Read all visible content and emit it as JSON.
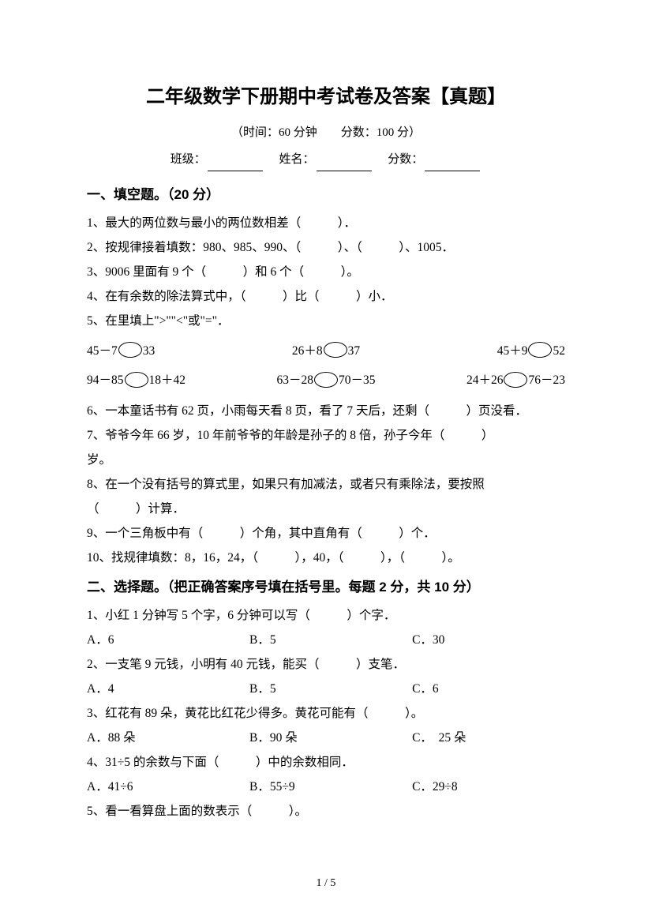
{
  "title": "二年级数学下册期中考试卷及答案【真题】",
  "subtitle": "（时间：60 分钟　　分数：100 分）",
  "info": {
    "class_label": "班级：",
    "name_label": "姓名：",
    "score_label": "分数："
  },
  "section1": {
    "header": "一、填空题。（20 分）",
    "q1": "1、最大的两位数与最小的两位数相差（　　　）．",
    "q2": "2、按规律接着填数：980、985、990、（　　　）、（　　　）、1005．",
    "q3": "3、9006 里面有 9 个（　　　）和 6 个（　　　）。",
    "q4": "4、在有余数的除法算式中，（　　　）比（　　　）小．",
    "q5": "5、在里填上\">\"\"<\"或\"=\"．",
    "cmp1": {
      "a_l": "45－7",
      "a_r": "33",
      "b_l": "26＋8",
      "b_r": "37",
      "c_l": "45＋9",
      "c_r": "52"
    },
    "cmp2": {
      "a_l": "94－85",
      "a_r": "18＋42",
      "b_l": "63－28",
      "b_r": "70－35",
      "c_l": "24＋26",
      "c_r": "76－23"
    },
    "q6": "6、一本童话书有 62 页，小雨每天看 8 页，看了 7 天后，还剩（　　　）页没看．",
    "q7a": "7、爷爷今年 66 岁，10 年前爷爷的年龄是孙子的 8 倍，孙子今年（　　　）",
    "q7b": "岁。",
    "q8a": "8、在一个没有括号的算式里，如果只有加减法，或者只有乘除法，要按照",
    "q8b": "（　　　）计算．",
    "q9": "9、一个三角板中有（　　　）个角，其中直角有（　　　）个．",
    "q10": "10、找规律填数：8，16，24，（　　　），40，（　　　），（　　　）。"
  },
  "section2": {
    "header": "二、选择题。（把正确答案序号填在括号里。每题 2 分，共 10 分）",
    "q1": "1、小红 1 分钟写 5 个字，6 分钟可以写（　　　）个字．",
    "q1a": "A．6",
    "q1b": "B．5",
    "q1c": "C．30",
    "q2": "2、一支笔 9 元钱，小明有 40 元钱，能买（　　　）支笔．",
    "q2a": "A．4",
    "q2b": "B．5",
    "q2c": "C．6",
    "q3": "3、红花有 89 朵，黄花比红花少得多。黄花可能有（　　　）。",
    "q3a": "A．88 朵",
    "q3b": "B．90 朵",
    "q3c": "C．　25 朵",
    "q4": "4、31÷5 的余数与下面（　　　）中的余数相同．",
    "q4a": "A．41÷6",
    "q4b": "B．55÷9",
    "q4c": "C．29÷8",
    "q5": "5、看一看算盘上面的数表示（　　　）。"
  },
  "footer": "1 / 5"
}
